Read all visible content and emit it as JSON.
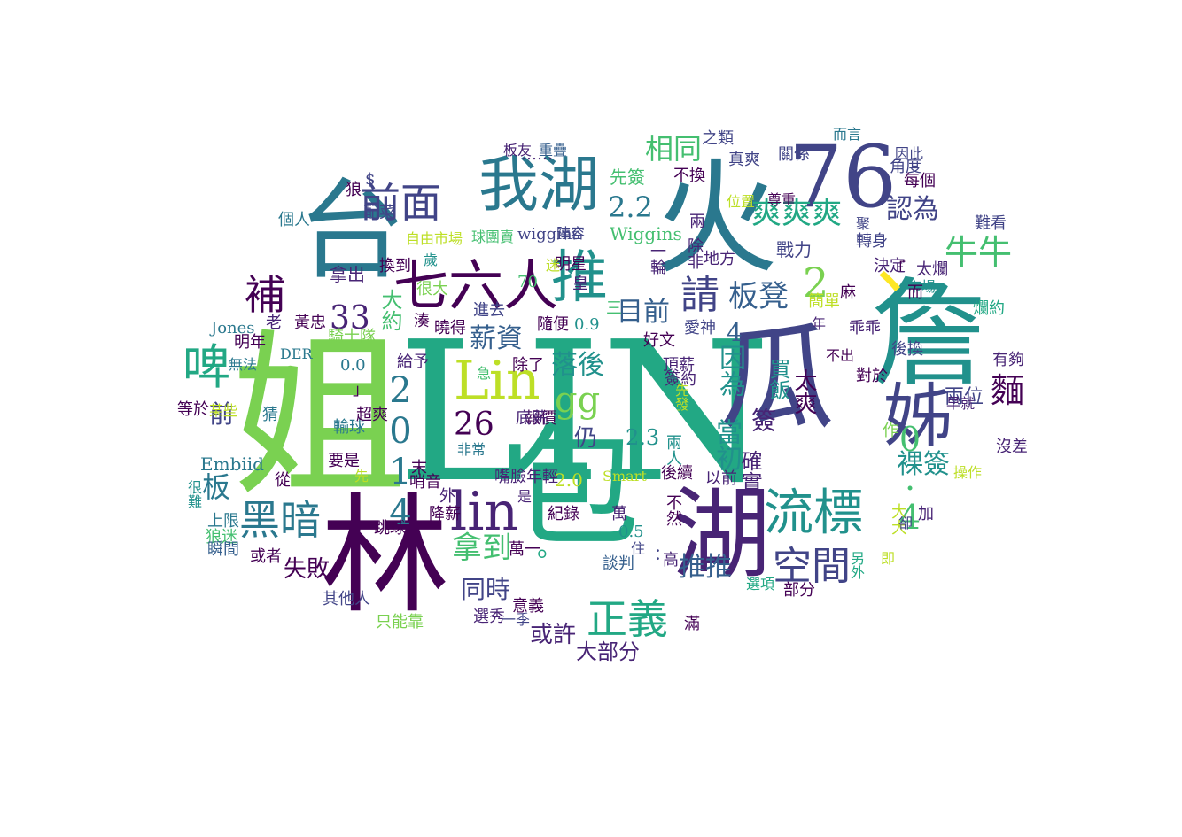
{
  "colors": [
    "#440154",
    "#482475",
    "#414487",
    "#355f8d",
    "#2a788e",
    "#21918c",
    "#22a884",
    "#44bf70",
    "#7ad151",
    "#bddf26",
    "#fde725"
  ],
  "words": [
    {
      "text": "LIN",
      "color": "#22a884"
    },
    {
      "text": "姐",
      "color": "#7ad151"
    },
    {
      "text": "林",
      "color": "#440154"
    },
    {
      "text": "包",
      "color": "#22a884"
    },
    {
      "text": "火",
      "color": "#2a788e"
    },
    {
      "text": "台",
      "color": "#2a788e"
    },
    {
      "text": "76",
      "color": "#414487"
    },
    {
      "text": "詹",
      "color": "#21918c"
    },
    {
      "text": "瓜",
      "color": "#414487"
    },
    {
      "text": "湖",
      "color": "#482475"
    },
    {
      "text": "姊",
      "color": "#414487"
    },
    {
      "text": "、",
      "color": "#fde725"
    },
    {
      "text": "我湖",
      "color": "#2a788e"
    },
    {
      "text": "七六人",
      "color": "#440154"
    },
    {
      "text": "推",
      "color": "#21918c"
    },
    {
      "text": "Lin",
      "color": "#bddf26"
    },
    {
      "text": "lin",
      "color": "#482475"
    },
    {
      "text": "流標",
      "color": "#21918c"
    },
    {
      "text": "黑暗",
      "color": "#2a788e"
    },
    {
      "text": "正義",
      "color": "#22a884"
    },
    {
      "text": "啤",
      "color": "#22a884"
    },
    {
      "text": "前面",
      "color": "#414487"
    },
    {
      "text": "補",
      "color": "#440154"
    },
    {
      "text": "2014",
      "color": "#2a788e"
    },
    {
      "text": "請",
      "color": "#414487"
    },
    {
      "text": "空間",
      "color": "#414487"
    },
    {
      "text": "爽爽爽",
      "color": "#22a884"
    },
    {
      "text": "gg",
      "color": "#7ad151"
    },
    {
      "text": "26",
      "color": "#440154"
    },
    {
      "text": "板凳",
      "color": "#355f8d"
    },
    {
      "text": "2",
      "color": "#7ad151"
    },
    {
      "text": "牛牛",
      "color": "#44bf70"
    },
    {
      "text": "麵",
      "color": "#440154"
    },
    {
      "text": "0.4",
      "color": "#44bf70"
    },
    {
      "text": "拿到",
      "color": "#44bf70"
    },
    {
      "text": "當初",
      "color": "#21918c"
    },
    {
      "text": "因為",
      "color": "#21918c"
    },
    {
      "text": "相同",
      "color": "#44bf70"
    },
    {
      "text": "2.2",
      "color": "#2a788e"
    },
    {
      "text": "認為",
      "color": "#414487"
    },
    {
      "text": "目前",
      "color": "#355f8d"
    },
    {
      "text": "33",
      "color": "#482475"
    },
    {
      "text": "薪資",
      "color": "#355f8d"
    },
    {
      "text": "落後",
      "color": "#21918c"
    },
    {
      "text": "同時",
      "color": "#414487"
    },
    {
      "text": "推推",
      "color": "#355f8d"
    },
    {
      "text": "或許",
      "color": "#482475"
    },
    {
      "text": "失敗",
      "color": "#440154"
    },
    {
      "text": "板",
      "color": "#2a788e"
    },
    {
      "text": "前",
      "color": "#414487"
    },
    {
      "text": "裸簽",
      "color": "#21918c"
    },
    {
      "text": "大部分",
      "color": "#482475"
    },
    {
      "text": "4",
      "color": "#355f8d"
    },
    {
      "text": "2.3",
      "color": "#21918c"
    },
    {
      "text": "仍",
      "color": "#414487"
    },
    {
      "text": "大約",
      "color": "#44bf70"
    },
    {
      "text": "太爽",
      "color": "#440154"
    },
    {
      "text": "確實",
      "color": "#482475"
    },
    {
      "text": "買飯",
      "color": "#21918c"
    },
    {
      "text": "簽",
      "color": "#482475"
    },
    {
      "text": "2.0",
      "color": "#bddf26"
    },
    {
      "text": "。",
      "color": "#22a884"
    },
    {
      "text": "戰力",
      "color": "#414487"
    },
    {
      "text": "兩位",
      "color": "#414487"
    },
    {
      "text": "先簽",
      "color": "#44bf70"
    },
    {
      "text": "Wiggins",
      "color": "#44bf70"
    },
    {
      "text": "wiggins",
      "color": "#414487"
    },
    {
      "text": "Embiid",
      "color": "#2a788e"
    },
    {
      "text": "Jones",
      "color": "#2a788e"
    },
    {
      "text": "真爽",
      "color": "#414487"
    },
    {
      "text": "關係",
      "color": "#414487"
    },
    {
      "text": "0.9",
      "color": "#21918c"
    },
    {
      "text": "0.5",
      "color": "#21918c"
    },
    {
      "text": "0.0",
      "color": "#2a788e"
    },
    {
      "text": "拿出",
      "color": "#482475"
    },
    {
      "text": "隨便",
      "color": "#440154"
    },
    {
      "text": "簡單",
      "color": "#bddf26"
    },
    {
      "text": "騎士隊",
      "color": "#7ad151"
    },
    {
      "text": "給予",
      "color": "#482475"
    },
    {
      "text": "除了",
      "color": "#440154"
    },
    {
      "text": "報價",
      "color": "#440154"
    },
    {
      "text": "嘴臉年輕",
      "color": "#482475"
    },
    {
      "text": "紀錄",
      "color": "#440154"
    },
    {
      "text": "談判",
      "color": "#355f8d"
    },
    {
      "text": "萬一",
      "color": "#440154"
    },
    {
      "text": "選秀",
      "color": "#482475"
    },
    {
      "text": "意義",
      "color": "#440154"
    },
    {
      "text": "只能靠",
      "color": "#7ad151"
    },
    {
      "text": "其他人",
      "color": "#414487"
    },
    {
      "text": "或者",
      "color": "#440154"
    },
    {
      "text": "上限",
      "color": "#2a788e"
    },
    {
      "text": "狼迷",
      "color": "#44bf70"
    },
    {
      "text": "瞬間",
      "color": "#355f8d"
    },
    {
      "text": "從",
      "color": "#440154"
    },
    {
      "text": "要是",
      "color": "#440154"
    },
    {
      "text": "輸球",
      "color": "#2a788e"
    },
    {
      "text": "超爽",
      "color": "#440154"
    },
    {
      "text": "底薪",
      "color": "#482475"
    },
    {
      "text": "猜",
      "color": "#2a788e"
    },
    {
      "text": "等於",
      "color": "#440154"
    },
    {
      "text": "無法",
      "color": "#2a788e"
    },
    {
      "text": "某些",
      "color": "#bddf26"
    },
    {
      "text": "明年",
      "color": "#440154"
    },
    {
      "text": "黃忠",
      "color": "#440154"
    },
    {
      "text": "老",
      "color": "#482475"
    },
    {
      "text": "個人",
      "color": "#2a788e"
    },
    {
      "text": "配菜",
      "color": "#414487"
    },
    {
      "text": "狼",
      "color": "#440154"
    },
    {
      "text": "$",
      "color": "#414487"
    },
    {
      "text": "自由市場",
      "color": "#bddf26"
    },
    {
      "text": "球團賣",
      "color": "#44bf70"
    },
    {
      "text": "陣容",
      "color": "#414487"
    },
    {
      "text": "換到",
      "color": "#440154"
    },
    {
      "text": "很大",
      "color": "#7ad151"
    },
    {
      "text": "進去",
      "color": "#414487"
    },
    {
      "text": "湊",
      "color": "#440154"
    },
    {
      "text": "曉得",
      "color": "#440154"
    },
    {
      "text": "明星",
      "color": "#440154"
    },
    {
      "text": "皇",
      "color": "#482475"
    },
    {
      "text": "好文",
      "color": "#440154"
    },
    {
      "text": "愛神",
      "color": "#414487"
    },
    {
      "text": "頂薪",
      "color": "#482475"
    },
    {
      "text": "簽約",
      "color": "#482475"
    },
    {
      "text": "先發",
      "color": "#bddf26"
    },
    {
      "text": "後續",
      "color": "#440154"
    },
    {
      "text": "以前",
      "color": "#482475"
    },
    {
      "text": "高",
      "color": "#482475"
    },
    {
      "text": "滿",
      "color": "#440154"
    },
    {
      "text": "部分",
      "color": "#440154"
    },
    {
      "text": "選項",
      "color": "#22a884"
    },
    {
      "text": "另外",
      "color": "#22a884"
    },
    {
      "text": "大大",
      "color": "#bddf26"
    },
    {
      "text": "沒差",
      "color": "#482475"
    },
    {
      "text": "操作",
      "color": "#bddf26"
    },
    {
      "text": "早就",
      "color": "#482475"
    },
    {
      "text": "有夠",
      "color": "#482475"
    },
    {
      "text": "爛約",
      "color": "#22a884"
    },
    {
      "text": "市場",
      "color": "#21918c"
    },
    {
      "text": "乖乖",
      "color": "#482475"
    },
    {
      "text": "麻",
      "color": "#440154"
    },
    {
      "text": "後換",
      "color": "#414487"
    },
    {
      "text": "不出",
      "color": "#440154"
    },
    {
      "text": "對於",
      "color": "#440154"
    },
    {
      "text": "太爛",
      "color": "#482475"
    },
    {
      "text": "決定",
      "color": "#482475"
    },
    {
      "text": "轉身",
      "color": "#414487"
    },
    {
      "text": "難看",
      "color": "#414487"
    },
    {
      "text": "每個",
      "color": "#440154"
    },
    {
      "text": "角度",
      "color": "#414487"
    },
    {
      "text": "因此",
      "color": "#414487"
    },
    {
      "text": "而言",
      "color": "#2a788e"
    },
    {
      "text": "尊重",
      "color": "#440154"
    },
    {
      "text": "地方",
      "color": "#482475"
    },
    {
      "text": "除非",
      "color": "#482475"
    },
    {
      "text": "不換",
      "color": "#440154"
    },
    {
      "text": "之類",
      "color": "#414487"
    },
    {
      "text": "重疊",
      "color": "#355f8d"
    },
    {
      "text": "板友",
      "color": "#482475"
    },
    {
      "text": "DER",
      "color": "#2a788e"
    },
    {
      "text": "非常",
      "color": "#2a788e"
    },
    {
      "text": "Smart",
      "color": "#bddf26"
    },
    {
      "text": "哨音",
      "color": "#440154"
    },
    {
      "text": "跳球",
      "color": "#440154"
    },
    {
      "text": "降薪",
      "color": "#440154"
    },
    {
      "text": "外",
      "color": "#482475"
    },
    {
      "text": "末",
      "color": "#440154"
    },
    {
      "text": "先",
      "color": "#bddf26"
    },
    {
      "text": "很難",
      "color": "#21918c"
    },
    {
      "text": "一季",
      "color": "#414487"
    },
    {
      "text": "住",
      "color": "#414487"
    },
    {
      "text": "萬",
      "color": "#482475"
    },
    {
      "text": "70",
      "color": "#44bf70"
    },
    {
      "text": "三",
      "color": "#44bf70"
    },
    {
      "text": "年",
      "color": "#482475"
    },
    {
      "text": "急",
      "color": "#44bf70"
    },
    {
      "text": "」",
      "color": "#440154"
    },
    {
      "text": "「",
      "color": "#440154"
    },
    {
      "text": "……",
      "color": "#482475"
    },
    {
      "text": "：",
      "color": "#414487"
    },
    {
      "text": "迷",
      "color": "#bddf26"
    },
    {
      "text": "歲",
      "color": "#21918c"
    },
    {
      "text": "一輪",
      "color": "#482475"
    },
    {
      "text": "兩",
      "color": "#482475"
    },
    {
      "text": "位置",
      "color": "#bddf26"
    },
    {
      "text": "而",
      "color": "#440154"
    },
    {
      "text": "加",
      "color": "#482475"
    },
    {
      "text": "作",
      "color": "#7ad151"
    },
    {
      "text": "卻",
      "color": "#414487"
    },
    {
      "text": "即",
      "color": "#bddf26"
    },
    {
      "text": "不然",
      "color": "#440154"
    },
    {
      "text": "兩人",
      "color": "#21918c"
    },
    {
      "text": "是",
      "color": "#482475"
    },
    {
      "text": "聚",
      "color": "#414487"
    }
  ]
}
